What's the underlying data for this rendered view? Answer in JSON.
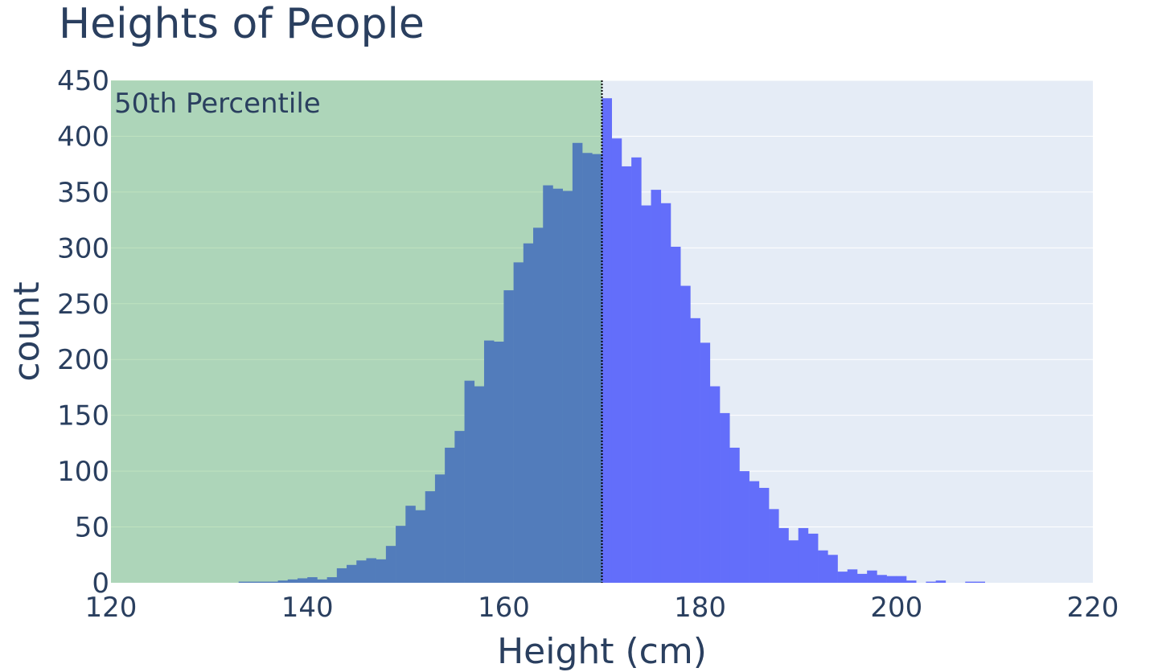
{
  "chart_data": {
    "type": "bar",
    "title": "Heights of People",
    "xlabel": "Height (cm)",
    "ylabel": "count",
    "xlim": [
      120,
      220
    ],
    "ylim": [
      0,
      450
    ],
    "x_ticks": [
      "120",
      "140",
      "160",
      "180",
      "200",
      "220"
    ],
    "y_ticks": [
      "0",
      "50",
      "100",
      "150",
      "200",
      "250",
      "300",
      "350",
      "400",
      "450"
    ],
    "grid": true,
    "bin_width": 1,
    "bins_start": [
      133,
      134,
      135,
      136,
      137,
      138,
      139,
      140,
      141,
      142,
      143,
      144,
      145,
      146,
      147,
      148,
      149,
      150,
      151,
      152,
      153,
      154,
      155,
      156,
      157,
      158,
      159,
      160,
      161,
      162,
      163,
      164,
      165,
      166,
      167,
      168,
      169,
      170,
      171,
      172,
      173,
      174,
      175,
      176,
      177,
      178,
      179,
      180,
      181,
      182,
      183,
      184,
      185,
      186,
      187,
      188,
      189,
      190,
      191,
      192,
      193,
      194,
      195,
      196,
      197,
      198,
      199,
      200,
      201,
      202,
      203,
      204,
      205,
      206,
      207,
      208
    ],
    "counts": [
      1,
      1,
      1,
      1,
      2,
      3,
      4,
      5,
      3,
      5,
      13,
      16,
      20,
      22,
      21,
      33,
      51,
      69,
      65,
      82,
      97,
      121,
      136,
      181,
      176,
      217,
      216,
      262,
      287,
      304,
      318,
      356,
      353,
      351,
      394,
      385,
      384,
      434,
      398,
      373,
      381,
      338,
      352,
      340,
      301,
      266,
      237,
      215,
      176,
      152,
      121,
      100,
      91,
      85,
      66,
      49,
      38,
      49,
      44,
      29,
      25,
      10,
      12,
      8,
      11,
      7,
      6,
      6,
      2,
      0,
      1,
      2,
      0,
      0,
      1,
      1
    ],
    "highlight_regions": [
      {
        "label": "50th Percentile",
        "x0": 120,
        "x1": 170,
        "color": "#2ca02c",
        "opacity": 0.3
      }
    ],
    "vline": {
      "x": 170,
      "style": "dotted",
      "color": "#000000"
    },
    "colors": {
      "bars": "#636efa",
      "plot_bg": "#e5ecf6",
      "grid": "#ffffff",
      "text": "#2a3f5f"
    }
  }
}
